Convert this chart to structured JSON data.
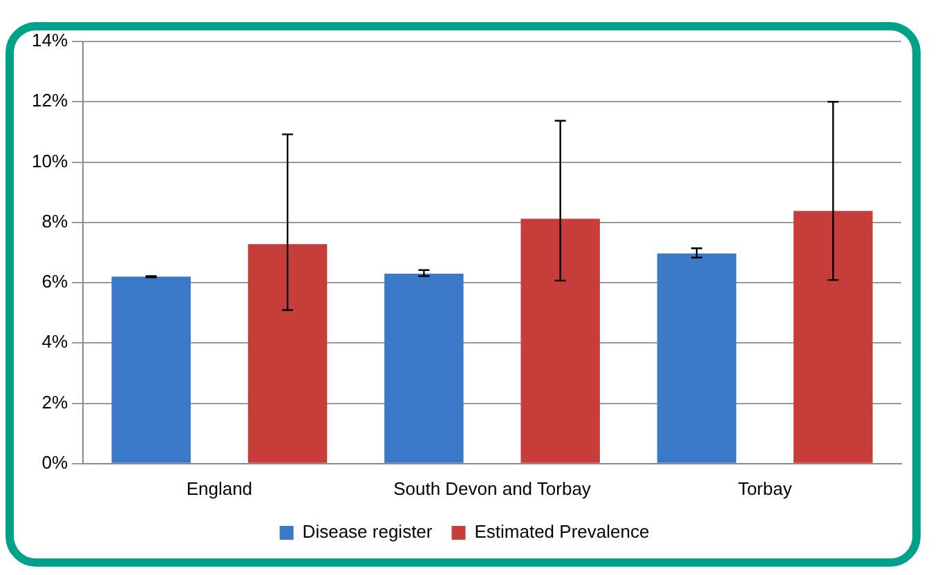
{
  "chart_data": {
    "type": "bar",
    "categories": [
      "England",
      "South Devon and Torbay",
      "Torbay"
    ],
    "series": [
      {
        "name": "Disease register",
        "color": "#3a78c8",
        "values": [
          6.2,
          6.3,
          6.97
        ],
        "errors": [
          [
            6.18,
            6.22
          ],
          [
            6.22,
            6.42
          ],
          [
            6.83,
            7.14
          ]
        ]
      },
      {
        "name": "Estimated Prevalence",
        "color": "#c63d3a",
        "values": [
          7.28,
          8.12,
          8.38
        ],
        "errors": [
          [
            5.09,
            10.92
          ],
          [
            6.07,
            11.37
          ],
          [
            6.09,
            12.0
          ]
        ]
      }
    ],
    "ylim": [
      0,
      14
    ],
    "yticks": [
      {
        "value": 0,
        "label": "0%"
      },
      {
        "value": 2,
        "label": "2%"
      },
      {
        "value": 4,
        "label": "4%"
      },
      {
        "value": 6,
        "label": "6%"
      },
      {
        "value": 8,
        "label": "8%"
      },
      {
        "value": 10,
        "label": "10%"
      },
      {
        "value": 12,
        "label": "12%"
      },
      {
        "value": 14,
        "label": "14%"
      }
    ],
    "grid": "y",
    "legend": "bottom"
  }
}
